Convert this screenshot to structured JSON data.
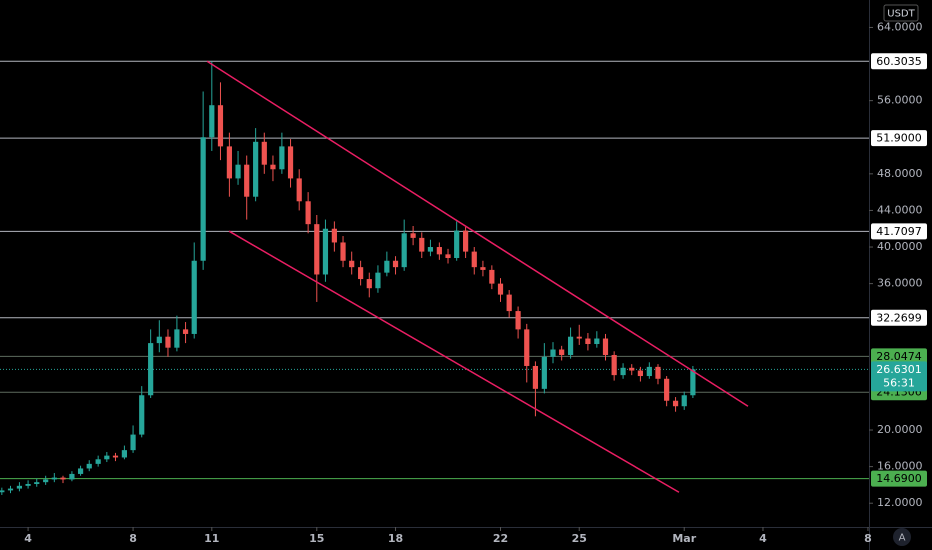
{
  "chart_data": {
    "type": "candlestick",
    "currency": "USDT",
    "auto_button": "A",
    "up_color": "#26a69a",
    "down_color": "#ef5350",
    "x": [
      3,
      3.33,
      3.67,
      4,
      4.33,
      4.67,
      5,
      5.33,
      5.67,
      6,
      6.33,
      6.67,
      7,
      7.33,
      7.67,
      8,
      8.33,
      8.67,
      9,
      9.33,
      9.67,
      10,
      10.33,
      10.67,
      11,
      11.33,
      11.67,
      12,
      12.33,
      12.67,
      13,
      13.33,
      13.67,
      14,
      14.33,
      14.67,
      15,
      15.33,
      15.67,
      16,
      16.33,
      16.67,
      17,
      17.33,
      17.67,
      18,
      18.33,
      18.67,
      19,
      19.33,
      19.67,
      20,
      20.33,
      20.67,
      21,
      21.33,
      21.67,
      22,
      22.33,
      22.67,
      23,
      23.33,
      23.67,
      24,
      24.33,
      24.67,
      25,
      25.33,
      25.67,
      26,
      26.33,
      26.67,
      27,
      27.33,
      27.67,
      28,
      28.33,
      28.67,
      29,
      29.33
    ],
    "open": [
      13.2,
      13.4,
      13.6,
      13.9,
      14.1,
      14.3,
      14.6,
      14.8,
      14.6,
      15.2,
      15.8,
      16.3,
      16.8,
      17.2,
      17.0,
      17.8,
      19.5,
      23.8,
      29.5,
      30.2,
      29.0,
      31.0,
      30.5,
      38.5,
      52.0,
      55.5,
      51.0,
      47.5,
      49.0,
      45.5,
      51.5,
      49.0,
      48.5,
      51.0,
      47.5,
      45.0,
      42.5,
      37.0,
      42.0,
      40.5,
      38.5,
      37.8,
      36.5,
      35.5,
      37.2,
      38.5,
      37.8,
      41.5,
      41.0,
      39.5,
      40.0,
      39.2,
      38.8,
      41.8,
      39.5,
      37.8,
      37.5,
      36.0,
      34.8,
      33.0,
      31.0,
      27.0,
      24.5,
      28.0,
      28.8,
      28.2,
      30.2,
      30.0,
      29.4,
      30.0,
      28.2,
      26.0,
      26.8,
      26.5,
      25.9,
      26.9,
      25.6,
      23.2,
      22.6,
      23.8
    ],
    "high": [
      13.7,
      13.9,
      14.3,
      14.5,
      14.7,
      15.0,
      15.3,
      15.0,
      15.5,
      16.1,
      16.7,
      17.2,
      17.6,
      17.5,
      18.3,
      20.5,
      24.8,
      31.0,
      32.0,
      31.0,
      32.5,
      31.8,
      40.5,
      57.0,
      60.3,
      58.0,
      52.5,
      50.5,
      50.0,
      53.0,
      52.5,
      50.0,
      52.5,
      51.8,
      48.5,
      46.0,
      43.5,
      43.0,
      42.8,
      41.2,
      39.5,
      38.5,
      37.2,
      38.0,
      39.5,
      39.0,
      43.0,
      42.3,
      41.6,
      40.8,
      40.5,
      39.8,
      42.8,
      42.2,
      40.0,
      38.5,
      38.0,
      36.6,
      35.3,
      33.5,
      31.6,
      27.5,
      29.5,
      29.6,
      29.2,
      31.2,
      31.5,
      30.6,
      30.8,
      30.5,
      28.6,
      27.3,
      27.2,
      26.9,
      27.4,
      27.2,
      25.9,
      23.6,
      24.2,
      27.0
    ],
    "low": [
      12.9,
      13.1,
      13.3,
      13.6,
      13.8,
      14.0,
      14.3,
      14.2,
      14.4,
      15.0,
      15.5,
      16.0,
      16.5,
      16.6,
      16.8,
      17.5,
      19.2,
      23.5,
      28.5,
      28.0,
      28.6,
      29.5,
      30.0,
      37.5,
      50.5,
      49.5,
      45.5,
      46.8,
      43.0,
      45.0,
      48.0,
      47.2,
      48.0,
      46.5,
      44.0,
      41.5,
      34.0,
      36.2,
      39.5,
      37.8,
      37.0,
      35.8,
      34.5,
      35.0,
      36.8,
      37.0,
      37.4,
      40.2,
      38.8,
      39.0,
      38.6,
      38.2,
      38.5,
      38.8,
      37.0,
      36.8,
      35.4,
      34.0,
      32.3,
      30.0,
      25.2,
      21.5,
      24.0,
      27.3,
      27.6,
      27.8,
      29.3,
      28.7,
      29.0,
      27.6,
      25.4,
      25.6,
      26.0,
      25.3,
      25.6,
      25.0,
      22.6,
      22.0,
      22.2,
      23.5
    ],
    "close": [
      13.4,
      13.6,
      13.9,
      14.1,
      14.3,
      14.6,
      14.8,
      14.6,
      15.2,
      15.8,
      16.3,
      16.8,
      17.2,
      17.0,
      17.8,
      19.5,
      23.8,
      29.5,
      30.2,
      29.0,
      31.0,
      30.5,
      38.5,
      52.0,
      55.5,
      51.0,
      47.5,
      49.0,
      45.5,
      51.5,
      49.0,
      48.5,
      51.0,
      47.5,
      45.0,
      42.5,
      37.0,
      42.0,
      40.5,
      38.5,
      37.8,
      36.5,
      35.5,
      37.2,
      38.5,
      37.8,
      41.5,
      41.0,
      39.5,
      40.0,
      39.2,
      38.8,
      41.8,
      39.5,
      37.8,
      37.5,
      36.0,
      34.8,
      33.0,
      31.0,
      27.0,
      24.5,
      28.0,
      28.8,
      28.2,
      30.2,
      30.0,
      29.4,
      30.0,
      28.2,
      26.0,
      26.8,
      26.5,
      25.9,
      26.9,
      25.6,
      23.2,
      22.6,
      23.8,
      26.63
    ],
    "xlim": [
      2.93,
      36.04
    ],
    "xticks": [
      4,
      8,
      11,
      15,
      18,
      22,
      25,
      {
        "value": 29,
        "label": "Mar"
      },
      {
        "value": 32,
        "label": "4"
      },
      {
        "value": 36,
        "label": "8"
      }
    ],
    "ylim": [
      9.4,
      67.0
    ],
    "yticks": [
      {
        "value": 64,
        "label": "64.0000"
      },
      {
        "value": 56,
        "label": "56.0000"
      },
      {
        "value": 48,
        "label": "48.0000"
      },
      {
        "value": 44,
        "label": "44.0000"
      },
      {
        "value": 40,
        "label": "40.0000"
      },
      {
        "value": 36,
        "label": "36.0000"
      },
      {
        "value": 20,
        "label": "20.0000"
      },
      {
        "value": 16,
        "label": "16.0000"
      },
      {
        "value": 12,
        "label": "12.0000"
      }
    ],
    "levels": [
      {
        "value": 60.3035,
        "color": "#b2b5be",
        "label_color": "#ffffff"
      },
      {
        "value": 51.9,
        "label": "51.9000",
        "color": "#b2b5be",
        "label_color": "#ffffff"
      },
      {
        "value": 41.7097,
        "color": "#b2b5be",
        "label_color": "#ffffff"
      },
      {
        "value": 32.2699,
        "color": "#b2b5be",
        "label_color": "#ffffff"
      },
      {
        "value": 28.0474,
        "color": "#5d6b5e",
        "label_color": "#4caf50"
      },
      {
        "value": 24.1306,
        "color": "#5d6b5e",
        "label_color": "#4caf50"
      },
      {
        "value": 14.69,
        "label": "14.6900",
        "color": "#4caf50",
        "label_color": "#4caf50"
      }
    ],
    "last_price": 26.6301,
    "countdown": "56:31",
    "trendline_color": "#e91e63",
    "trendlines": [
      {
        "x": [
          10.82,
          31.43
        ],
        "y": [
          60.3,
          22.6
        ]
      },
      {
        "x": [
          11.66,
          28.8
        ],
        "y": [
          41.73,
          13.2
        ]
      }
    ]
  }
}
